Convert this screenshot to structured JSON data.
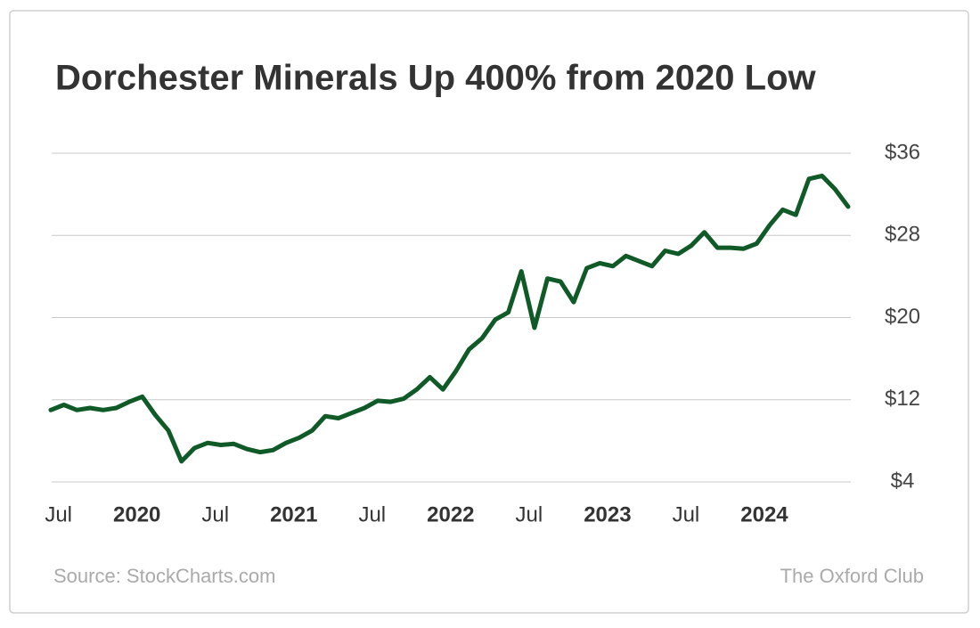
{
  "chart_data": {
    "type": "line",
    "title": "Dorchester Minerals Up 400% from 2020 Low",
    "source": "Source: StockCharts.com",
    "publisher": "The Oxford Club",
    "color": "#0f5a26",
    "grid": true,
    "x": [
      "2019-06",
      "2019-07",
      "2019-08",
      "2019-09",
      "2019-10",
      "2019-11",
      "2019-12",
      "2020-01",
      "2020-02",
      "2020-03",
      "2020-04",
      "2020-05",
      "2020-06",
      "2020-07",
      "2020-08",
      "2020-09",
      "2020-10",
      "2020-11",
      "2020-12",
      "2021-01",
      "2021-02",
      "2021-03",
      "2021-04",
      "2021-05",
      "2021-06",
      "2021-07",
      "2021-08",
      "2021-09",
      "2021-10",
      "2021-11",
      "2021-12",
      "2022-01",
      "2022-02",
      "2022-03",
      "2022-04",
      "2022-05",
      "2022-06",
      "2022-07",
      "2022-08",
      "2022-09",
      "2022-10",
      "2022-11",
      "2022-12",
      "2023-01",
      "2023-02",
      "2023-03",
      "2023-04",
      "2023-05",
      "2023-06",
      "2023-07",
      "2023-08",
      "2023-09",
      "2023-10",
      "2023-11",
      "2023-12",
      "2024-01",
      "2024-02",
      "2024-03",
      "2024-04",
      "2024-05",
      "2024-06",
      "2024-07"
    ],
    "values": [
      11.0,
      11.5,
      11.0,
      11.2,
      11.0,
      11.2,
      11.8,
      12.3,
      10.5,
      9.0,
      6.0,
      7.3,
      7.8,
      7.6,
      7.7,
      7.2,
      6.9,
      7.1,
      7.8,
      8.3,
      9.0,
      10.4,
      10.2,
      10.7,
      11.2,
      11.9,
      11.8,
      12.1,
      13.0,
      14.2,
      13.0,
      14.8,
      16.9,
      18.0,
      19.8,
      20.5,
      24.5,
      19.0,
      23.8,
      23.5,
      21.5,
      24.8,
      25.3,
      25.0,
      26.0,
      25.5,
      25.0,
      26.5,
      26.2,
      27.0,
      28.3,
      26.8,
      26.8,
      26.7,
      27.2,
      29.0,
      30.5,
      30.0,
      33.5,
      33.8,
      32.5,
      30.8
    ],
    "xlim": [
      "2019-06",
      "2024-07"
    ],
    "xticks": [
      {
        "value": "2019-07",
        "label": "Jul"
      },
      {
        "value": "2020-01",
        "label": "2020"
      },
      {
        "value": "2020-07",
        "label": "Jul"
      },
      {
        "value": "2021-01",
        "label": "2021"
      },
      {
        "value": "2021-07",
        "label": "Jul"
      },
      {
        "value": "2022-01",
        "label": "2022"
      },
      {
        "value": "2022-07",
        "label": "Jul"
      },
      {
        "value": "2023-01",
        "label": "2023"
      },
      {
        "value": "2023-07",
        "label": "Jul"
      },
      {
        "value": "2024-01",
        "label": "2024"
      }
    ],
    "ylim": [
      4,
      36
    ],
    "yticks": [
      {
        "value": 4,
        "label": "$4"
      },
      {
        "value": 12,
        "label": "$12"
      },
      {
        "value": 20,
        "label": "$20"
      },
      {
        "value": 28,
        "label": "$28"
      },
      {
        "value": 36,
        "label": "$36"
      }
    ]
  }
}
